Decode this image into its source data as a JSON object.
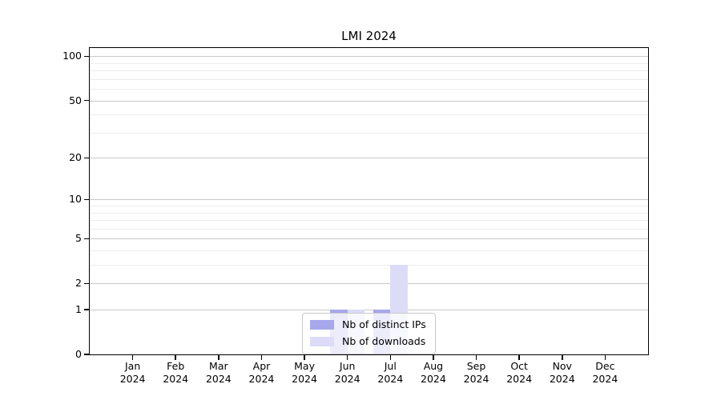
{
  "title": "LMI 2024",
  "chart_data": {
    "type": "bar",
    "title": "LMI 2024",
    "yscale": "log1p",
    "ylim": [
      0,
      114
    ],
    "ytick_values": [
      0,
      1,
      2,
      5,
      10,
      20,
      50,
      100
    ],
    "yminor_values": [
      3,
      4,
      6,
      7,
      8,
      9,
      30,
      40,
      60,
      70,
      80,
      90
    ],
    "grid": true,
    "xlabel": "",
    "ylabel": "",
    "categories": [
      "Jan",
      "Feb",
      "Mar",
      "Apr",
      "May",
      "Jun",
      "Jul",
      "Aug",
      "Sep",
      "Oct",
      "Nov",
      "Dec"
    ],
    "year_label": "2024",
    "series": [
      {
        "name": "Nb of distinct IPs",
        "color": "#a7a7ec",
        "values": [
          0,
          0,
          0,
          0,
          0,
          1,
          1,
          0,
          0,
          0,
          0,
          0
        ]
      },
      {
        "name": "Nb of downloads",
        "color": "#dcdcf8",
        "values": [
          0,
          0,
          0,
          0,
          0,
          1,
          3,
          0,
          0,
          0,
          0,
          0
        ]
      }
    ],
    "legend_position": "lower center"
  },
  "colors": {
    "background": "#ffffff",
    "spine": "#000000",
    "grid_major": "#c9c9c9",
    "grid_minor": "#ececec",
    "bar_distinct_ips": "#a7a7ec",
    "bar_downloads": "#dcdcf8",
    "legend_border": "#c9c9c9"
  }
}
